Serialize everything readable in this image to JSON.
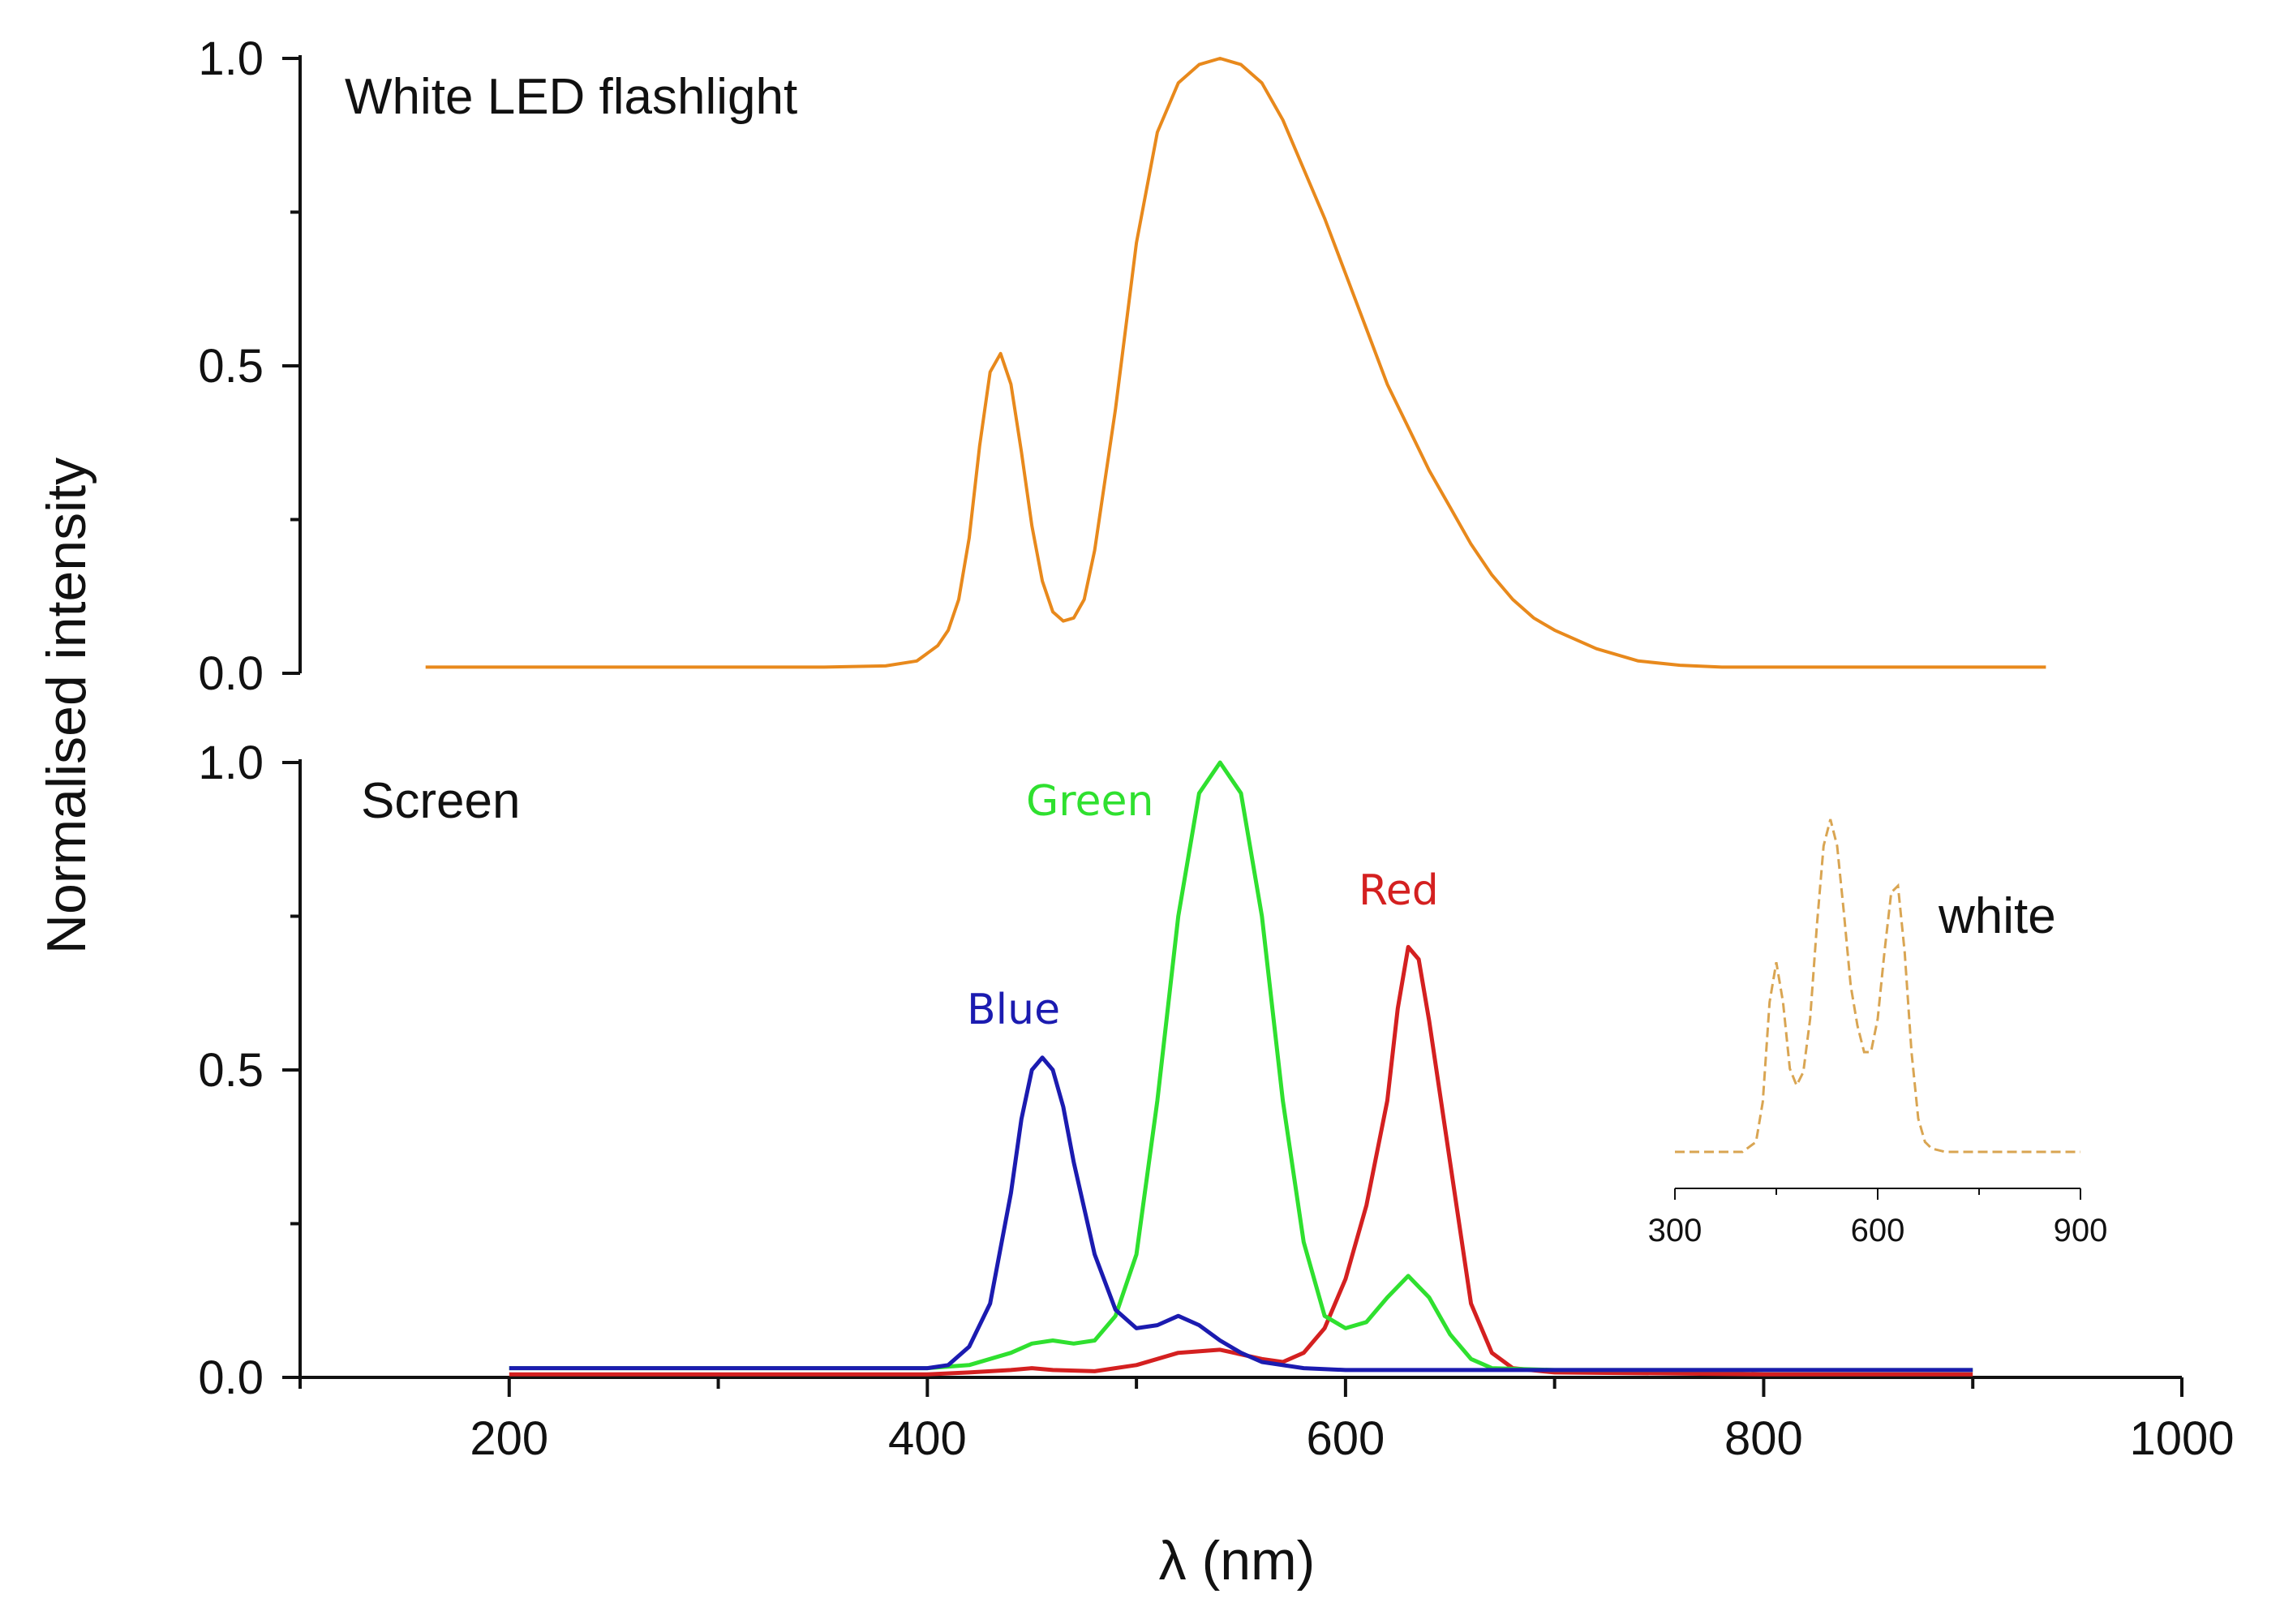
{
  "chart_data": [
    {
      "type": "line",
      "panel": "top",
      "title": "White LED flashlight",
      "ylabel": "Normalised intensity",
      "xlabel": "λ (nm)",
      "xlim": [
        100,
        1000
      ],
      "ylim": [
        0,
        1
      ],
      "yticks": [
        "0.0",
        "0.5",
        "1.0"
      ],
      "yticks_values": [
        0,
        0.5,
        1.0
      ],
      "series": [
        {
          "name": "White LED flashlight",
          "color": "#E8891C",
          "x": [
            160,
            200,
            250,
            300,
            350,
            380,
            395,
            405,
            410,
            415,
            420,
            425,
            430,
            435,
            440,
            445,
            450,
            455,
            460,
            465,
            470,
            475,
            480,
            490,
            500,
            510,
            520,
            530,
            540,
            550,
            560,
            570,
            580,
            590,
            600,
            610,
            620,
            630,
            640,
            650,
            660,
            670,
            680,
            690,
            700,
            720,
            740,
            760,
            780,
            800,
            850,
            900,
            935
          ],
          "y": [
            0.01,
            0.01,
            0.01,
            0.01,
            0.01,
            0.012,
            0.02,
            0.045,
            0.07,
            0.12,
            0.22,
            0.37,
            0.49,
            0.52,
            0.47,
            0.36,
            0.24,
            0.15,
            0.1,
            0.085,
            0.09,
            0.12,
            0.2,
            0.43,
            0.7,
            0.88,
            0.96,
            0.99,
            1.0,
            0.99,
            0.96,
            0.9,
            0.82,
            0.74,
            0.65,
            0.56,
            0.47,
            0.4,
            0.33,
            0.27,
            0.21,
            0.16,
            0.12,
            0.09,
            0.07,
            0.04,
            0.02,
            0.013,
            0.01,
            0.01,
            0.01,
            0.01,
            0.01
          ]
        }
      ]
    },
    {
      "type": "line",
      "panel": "bottom",
      "title": "Screen",
      "xlabel": "λ (nm)",
      "xlim": [
        100,
        1000
      ],
      "ylim": [
        0,
        1
      ],
      "xticks": [
        "200",
        "400",
        "600",
        "800",
        "1000"
      ],
      "xticks_values": [
        200,
        400,
        600,
        800,
        1000
      ],
      "yticks": [
        "0.0",
        "0.5",
        "1.0"
      ],
      "yticks_values": [
        0,
        0.5,
        1.0
      ],
      "series": [
        {
          "name": "Blue",
          "color": "#1B1BB0",
          "x": [
            200,
            300,
            400,
            410,
            420,
            430,
            440,
            445,
            450,
            455,
            460,
            465,
            470,
            480,
            490,
            500,
            510,
            520,
            530,
            540,
            550,
            560,
            580,
            600,
            700,
            800,
            900
          ],
          "y": [
            0.015,
            0.015,
            0.015,
            0.02,
            0.05,
            0.12,
            0.3,
            0.42,
            0.5,
            0.52,
            0.5,
            0.44,
            0.35,
            0.2,
            0.11,
            0.08,
            0.085,
            0.1,
            0.085,
            0.06,
            0.04,
            0.025,
            0.015,
            0.012,
            0.012,
            0.012,
            0.012
          ]
        },
        {
          "name": "Green",
          "color": "#2FE02F",
          "x": [
            200,
            300,
            400,
            420,
            440,
            450,
            460,
            470,
            480,
            490,
            500,
            510,
            520,
            530,
            540,
            550,
            560,
            570,
            580,
            590,
            600,
            610,
            620,
            630,
            640,
            650,
            660,
            670,
            700,
            800,
            900
          ],
          "y": [
            0.015,
            0.015,
            0.015,
            0.02,
            0.04,
            0.055,
            0.06,
            0.055,
            0.06,
            0.1,
            0.2,
            0.45,
            0.75,
            0.95,
            1.0,
            0.95,
            0.75,
            0.45,
            0.22,
            0.1,
            0.08,
            0.09,
            0.13,
            0.165,
            0.13,
            0.07,
            0.03,
            0.015,
            0.012,
            0.012,
            0.012
          ]
        },
        {
          "name": "Red",
          "color": "#D42020",
          "x": [
            200,
            300,
            400,
            420,
            440,
            450,
            460,
            480,
            500,
            520,
            540,
            560,
            570,
            580,
            590,
            600,
            610,
            620,
            625,
            630,
            635,
            640,
            650,
            660,
            670,
            680,
            700,
            800,
            900
          ],
          "y": [
            0.005,
            0.005,
            0.005,
            0.008,
            0.012,
            0.015,
            0.012,
            0.01,
            0.02,
            0.04,
            0.045,
            0.03,
            0.025,
            0.04,
            0.08,
            0.16,
            0.28,
            0.45,
            0.6,
            0.7,
            0.68,
            0.58,
            0.35,
            0.12,
            0.04,
            0.015,
            0.008,
            0.005,
            0.005
          ]
        }
      ],
      "annotations": [
        "Green",
        "Red",
        "Blue"
      ]
    },
    {
      "type": "line",
      "panel": "inset",
      "title": "white",
      "xlim": [
        300,
        900
      ],
      "xticks": [
        "300",
        "600",
        "900"
      ],
      "xticks_values": [
        300,
        600,
        900
      ],
      "series": [
        {
          "name": "white",
          "color": "#D9A552",
          "style": "dashed",
          "x": [
            300,
            400,
            420,
            430,
            440,
            450,
            460,
            470,
            480,
            490,
            500,
            510,
            520,
            530,
            540,
            550,
            560,
            570,
            580,
            590,
            600,
            610,
            620,
            630,
            640,
            650,
            660,
            670,
            680,
            700,
            800,
            900
          ],
          "y": [
            0.0,
            0.0,
            0.03,
            0.15,
            0.45,
            0.57,
            0.45,
            0.25,
            0.2,
            0.24,
            0.4,
            0.68,
            0.92,
            1.0,
            0.92,
            0.72,
            0.5,
            0.38,
            0.3,
            0.3,
            0.4,
            0.6,
            0.78,
            0.8,
            0.6,
            0.3,
            0.1,
            0.03,
            0.01,
            0.0,
            0.0,
            0.0
          ]
        }
      ]
    }
  ]
}
